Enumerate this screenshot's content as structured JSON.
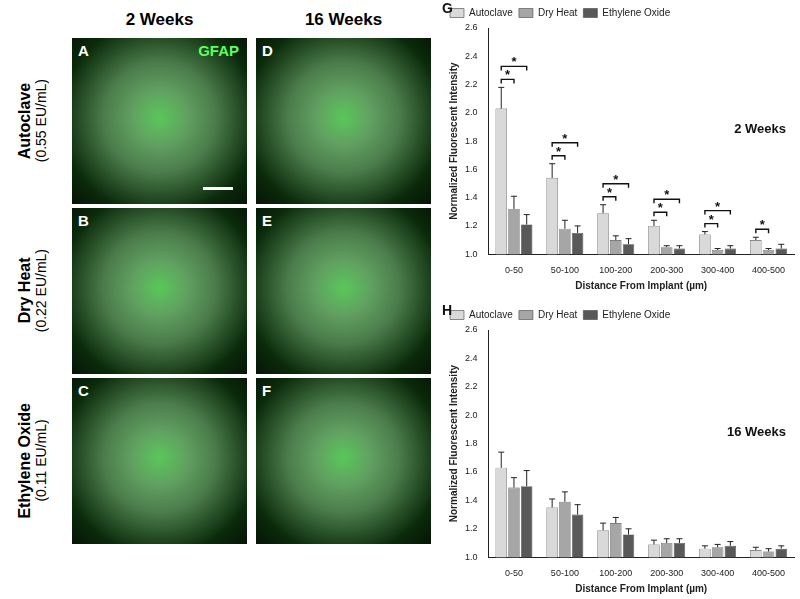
{
  "figure": {
    "column_headers": [
      "2 Weeks",
      "16 Weeks"
    ],
    "row_labels": [
      {
        "name": "Autoclave",
        "endotoxin": "(0.55 EU/mL)"
      },
      {
        "name": "Dry Heat",
        "endotoxin": "(0.22 EU/mL)"
      },
      {
        "name": "Ethylene Oxide",
        "endotoxin": "(0.11 EU/mL)"
      }
    ],
    "panels": [
      [
        {
          "letter": "A",
          "stain": "GFAP"
        },
        {
          "letter": "D"
        }
      ],
      [
        {
          "letter": "B"
        },
        {
          "letter": "E"
        }
      ],
      [
        {
          "letter": "C"
        },
        {
          "letter": "F"
        }
      ]
    ]
  },
  "chart_data": [
    {
      "type": "bar",
      "panel_label": "G",
      "title": "2 Weeks",
      "x_label": "Distance From Implant (µm)",
      "y_label": "Normalized Fluorescent Intensity",
      "categories": [
        "0-50",
        "50-100",
        "100-200",
        "200-300",
        "300-400",
        "400-500"
      ],
      "series": [
        {
          "name": "Autoclave",
          "color": "#d9d9d9",
          "values": [
            2.03,
            1.54,
            1.29,
            1.2,
            1.14,
            1.1
          ],
          "errors": [
            0.15,
            0.1,
            0.06,
            0.04,
            0.02,
            0.02
          ]
        },
        {
          "name": "Dry Heat",
          "color": "#a6a6a6",
          "values": [
            1.32,
            1.18,
            1.1,
            1.05,
            1.03,
            1.03
          ],
          "errors": [
            0.09,
            0.06,
            0.03,
            0.01,
            0.01,
            0.01
          ]
        },
        {
          "name": "Ethylene Oxide",
          "color": "#595959",
          "values": [
            1.21,
            1.15,
            1.07,
            1.04,
            1.04,
            1.04
          ],
          "errors": [
            0.07,
            0.05,
            0.04,
            0.02,
            0.02,
            0.03
          ]
        }
      ],
      "significance": [
        {
          "category": "0-50",
          "series": [
            "Autoclave",
            "Dry Heat"
          ],
          "label": "*"
        },
        {
          "category": "0-50",
          "series": [
            "Autoclave",
            "Ethylene Oxide"
          ],
          "label": "*"
        },
        {
          "category": "50-100",
          "series": [
            "Autoclave",
            "Dry Heat"
          ],
          "label": "*"
        },
        {
          "category": "50-100",
          "series": [
            "Autoclave",
            "Ethylene Oxide"
          ],
          "label": "*"
        },
        {
          "category": "100-200",
          "series": [
            "Autoclave",
            "Dry Heat"
          ],
          "label": "*"
        },
        {
          "category": "100-200",
          "series": [
            "Autoclave",
            "Ethylene Oxide"
          ],
          "label": "*"
        },
        {
          "category": "200-300",
          "series": [
            "Autoclave",
            "Dry Heat"
          ],
          "label": "*"
        },
        {
          "category": "200-300",
          "series": [
            "Autoclave",
            "Ethylene Oxide"
          ],
          "label": "*"
        },
        {
          "category": "300-400",
          "series": [
            "Autoclave",
            "Dry Heat"
          ],
          "label": "*"
        },
        {
          "category": "300-400",
          "series": [
            "Autoclave",
            "Ethylene Oxide"
          ],
          "label": "*"
        },
        {
          "category": "400-500",
          "series": [
            "Autoclave",
            "Dry Heat"
          ],
          "label": "*"
        }
      ],
      "ylim": [
        1.0,
        2.6
      ],
      "yticks": [
        {
          "value": 1,
          "label": "1.0"
        },
        1.2,
        1.4,
        1.6,
        1.8,
        {
          "value": 2,
          "label": "2.0"
        },
        2.2,
        2.4,
        2.6
      ],
      "grid": false,
      "legend": "upper left"
    },
    {
      "type": "bar",
      "panel_label": "H",
      "title": "16 Weeks",
      "x_label": "Distance From Implant (µm)",
      "y_label": "Normalized Fluorescent Intensity",
      "categories": [
        "0-50",
        "50-100",
        "100-200",
        "200-300",
        "300-400",
        "400-500"
      ],
      "series": [
        {
          "name": "Autoclave",
          "color": "#d9d9d9",
          "values": [
            1.63,
            1.35,
            1.19,
            1.09,
            1.06,
            1.05
          ],
          "errors": [
            0.11,
            0.06,
            0.05,
            0.03,
            0.02,
            0.02
          ]
        },
        {
          "name": "Dry Heat",
          "color": "#a6a6a6",
          "values": [
            1.49,
            1.39,
            1.24,
            1.1,
            1.07,
            1.04
          ],
          "errors": [
            0.07,
            0.07,
            0.04,
            0.03,
            0.02,
            0.02
          ]
        },
        {
          "name": "Ethylene Oxide",
          "color": "#595959",
          "values": [
            1.5,
            1.3,
            1.16,
            1.1,
            1.08,
            1.06
          ],
          "errors": [
            0.11,
            0.07,
            0.04,
            0.03,
            0.03,
            0.02
          ]
        }
      ],
      "ylim": [
        1.0,
        2.6
      ],
      "yticks": [
        {
          "value": 1,
          "label": "1.0"
        },
        1.2,
        1.4,
        1.6,
        1.8,
        {
          "value": 2,
          "label": "2.0"
        },
        2.2,
        2.4,
        2.6
      ],
      "grid": false,
      "legend": "upper left"
    }
  ]
}
